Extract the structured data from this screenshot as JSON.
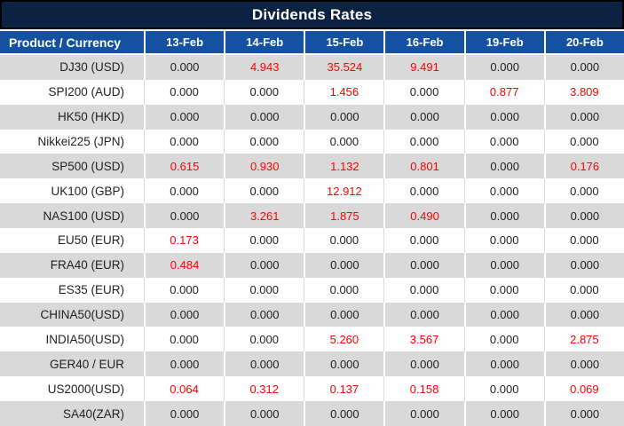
{
  "title": "Dividends Rates",
  "colors": {
    "title_bg": "#0d2140",
    "header_bg": "#1451a0",
    "stripe": "#d9d9d9",
    "highlight": "#ff0000",
    "text": "#1f1f1f"
  },
  "table": {
    "columns": [
      "Product / Currency",
      "13-Feb",
      "14-Feb",
      "15-Feb",
      "16-Feb",
      "19-Feb",
      "20-Feb"
    ],
    "rows": [
      {
        "label": "DJ30 (USD)",
        "values": [
          "0.000",
          "4.943",
          "35.524",
          "9.491",
          "0.000",
          "0.000"
        ],
        "highlighted": [
          false,
          true,
          true,
          true,
          false,
          false
        ]
      },
      {
        "label": "SPI200 (AUD)",
        "values": [
          "0.000",
          "0.000",
          "1.456",
          "0.000",
          "0.877",
          "3.809"
        ],
        "highlighted": [
          false,
          false,
          true,
          false,
          true,
          true
        ]
      },
      {
        "label": "HK50 (HKD)",
        "values": [
          "0.000",
          "0.000",
          "0.000",
          "0.000",
          "0.000",
          "0.000"
        ],
        "highlighted": [
          false,
          false,
          false,
          false,
          false,
          false
        ]
      },
      {
        "label": "Nikkei225 (JPN)",
        "values": [
          "0.000",
          "0.000",
          "0.000",
          "0.000",
          "0.000",
          "0.000"
        ],
        "highlighted": [
          false,
          false,
          false,
          false,
          false,
          false
        ]
      },
      {
        "label": "SP500 (USD)",
        "values": [
          "0.615",
          "0.930",
          "1.132",
          "0.801",
          "0.000",
          "0.176"
        ],
        "highlighted": [
          true,
          true,
          true,
          true,
          false,
          true
        ]
      },
      {
        "label": "UK100 (GBP)",
        "values": [
          "0.000",
          "0.000",
          "12.912",
          "0.000",
          "0.000",
          "0.000"
        ],
        "highlighted": [
          false,
          false,
          true,
          false,
          false,
          false
        ]
      },
      {
        "label": "NAS100 (USD)",
        "values": [
          "0.000",
          "3.261",
          "1.875",
          "0.490",
          "0.000",
          "0.000"
        ],
        "highlighted": [
          false,
          true,
          true,
          true,
          false,
          false
        ]
      },
      {
        "label": "EU50 (EUR)",
        "values": [
          "0.173",
          "0.000",
          "0.000",
          "0.000",
          "0.000",
          "0.000"
        ],
        "highlighted": [
          true,
          false,
          false,
          false,
          false,
          false
        ]
      },
      {
        "label": "FRA40 (EUR)",
        "values": [
          "0.484",
          "0.000",
          "0.000",
          "0.000",
          "0.000",
          "0.000"
        ],
        "highlighted": [
          true,
          false,
          false,
          false,
          false,
          false
        ]
      },
      {
        "label": "ES35 (EUR)",
        "values": [
          "0.000",
          "0.000",
          "0.000",
          "0.000",
          "0.000",
          "0.000"
        ],
        "highlighted": [
          false,
          false,
          false,
          false,
          false,
          false
        ]
      },
      {
        "label": "CHINA50(USD)",
        "values": [
          "0.000",
          "0.000",
          "0.000",
          "0.000",
          "0.000",
          "0.000"
        ],
        "highlighted": [
          false,
          false,
          false,
          false,
          false,
          false
        ]
      },
      {
        "label": "INDIA50(USD)",
        "values": [
          "0.000",
          "0.000",
          "5.260",
          "3.567",
          "0.000",
          "2.875"
        ],
        "highlighted": [
          false,
          false,
          true,
          true,
          false,
          true
        ]
      },
      {
        "label": "GER40 / EUR",
        "values": [
          "0.000",
          "0.000",
          "0.000",
          "0.000",
          "0.000",
          "0.000"
        ],
        "highlighted": [
          false,
          false,
          false,
          false,
          false,
          false
        ]
      },
      {
        "label": "US2000(USD)",
        "values": [
          "0.064",
          "0.312",
          "0.137",
          "0.158",
          "0.000",
          "0.069"
        ],
        "highlighted": [
          true,
          true,
          true,
          true,
          false,
          true
        ]
      },
      {
        "label": "SA40(ZAR)",
        "values": [
          "0.000",
          "0.000",
          "0.000",
          "0.000",
          "0.000",
          "0.000"
        ],
        "highlighted": [
          false,
          false,
          false,
          false,
          false,
          false
        ]
      }
    ]
  }
}
